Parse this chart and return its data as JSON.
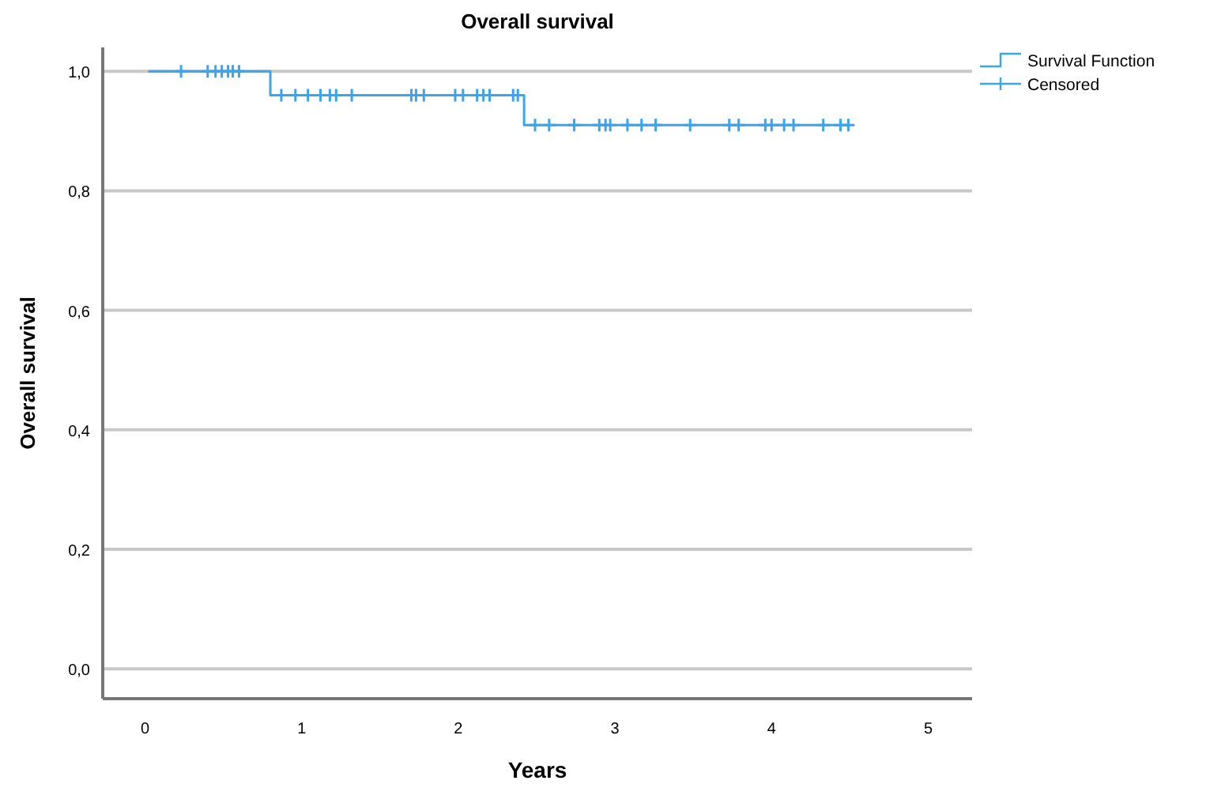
{
  "chart_data": {
    "type": "step",
    "title": "Overall survival",
    "xlabel": "Years",
    "ylabel": "Overall survival",
    "xlim": [
      -0.27,
      5.28
    ],
    "ylim": [
      -0.05,
      1.04
    ],
    "xticks": [
      0,
      1,
      2,
      3,
      4,
      5
    ],
    "yticks": [
      {
        "value": 0,
        "label": "0,0"
      },
      {
        "value": 0.2,
        "label": "0,2"
      },
      {
        "value": 0.4,
        "label": "0,4"
      },
      {
        "value": 0.6,
        "label": "0,6"
      },
      {
        "value": 0.8,
        "label": "0,8"
      },
      {
        "value": 1,
        "label": "1,0"
      }
    ],
    "grid": "y",
    "legend": "top right",
    "series": [
      {
        "name": "Survival Function",
        "color": "#3aa4ec",
        "x": [
          0.02,
          0.8,
          2.42,
          4.5
        ],
        "values": [
          1,
          0.96,
          0.91,
          0.91
        ]
      },
      {
        "name": "Censored",
        "type": "scatter",
        "marker": "cross",
        "color": "#3aa4ec",
        "x": [
          0.23,
          0.4,
          0.45,
          0.49,
          0.53,
          0.56,
          0.6,
          0.87,
          0.96,
          1.04,
          1.12,
          1.18,
          1.22,
          1.32,
          1.7,
          1.73,
          1.78,
          1.98,
          2.03,
          2.12,
          2.16,
          2.2,
          2.35,
          2.38,
          2.49,
          2.58,
          2.74,
          2.9,
          2.94,
          2.97,
          3.08,
          3.17,
          3.26,
          3.48,
          3.73,
          3.79,
          3.96,
          4.0,
          4.08,
          4.14,
          4.33,
          4.44,
          4.49
        ],
        "values": [
          1,
          1,
          1,
          1,
          1,
          1,
          1,
          0.96,
          0.96,
          0.96,
          0.96,
          0.96,
          0.96,
          0.96,
          0.96,
          0.96,
          0.96,
          0.96,
          0.96,
          0.96,
          0.96,
          0.96,
          0.96,
          0.96,
          0.91,
          0.91,
          0.91,
          0.91,
          0.91,
          0.91,
          0.91,
          0.91,
          0.91,
          0.91,
          0.91,
          0.91,
          0.91,
          0.91,
          0.91,
          0.91,
          0.91,
          0.91,
          0.91
        ]
      }
    ]
  }
}
